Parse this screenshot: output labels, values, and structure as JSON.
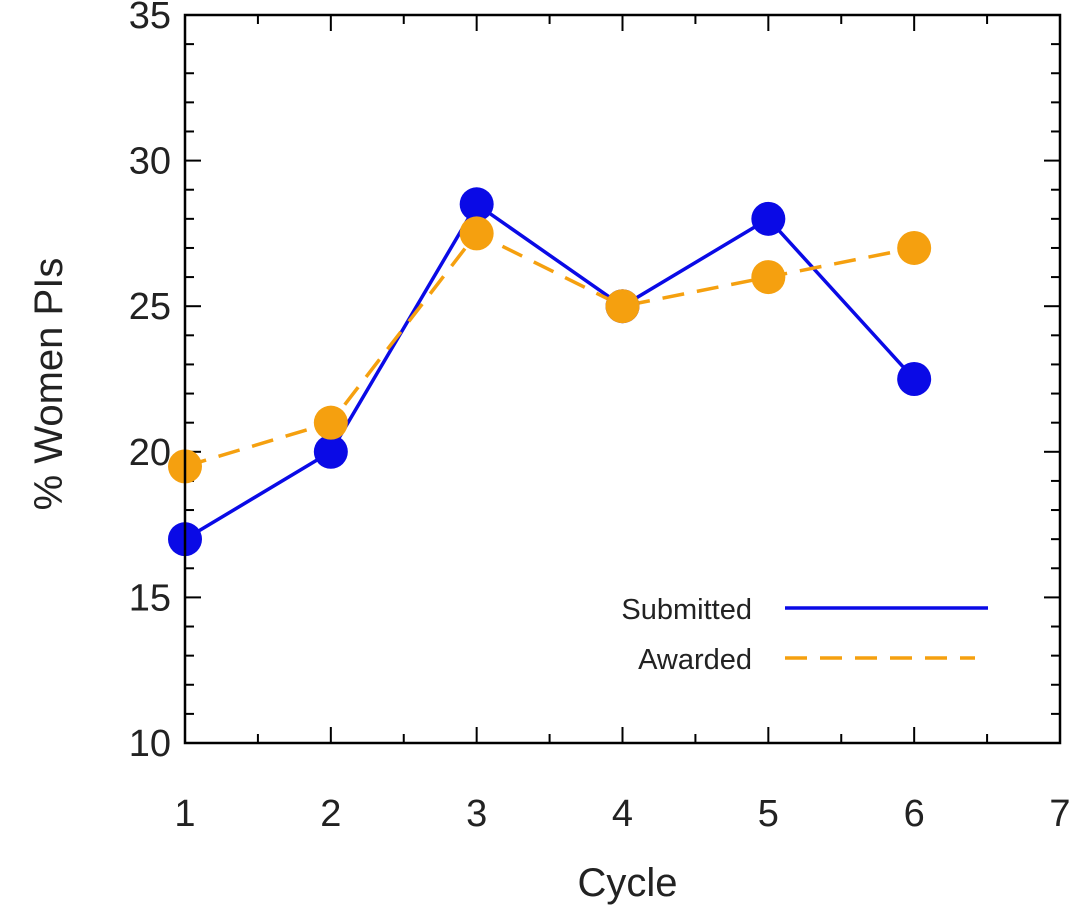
{
  "chart_data": {
    "type": "line",
    "title": "",
    "xlabel": "Cycle",
    "ylabel": "% Women PIs",
    "xlim": [
      1,
      7
    ],
    "ylim": [
      10,
      35
    ],
    "xticks": [
      1,
      2,
      3,
      4,
      5,
      6,
      7
    ],
    "yticks": [
      10,
      15,
      20,
      25,
      30,
      35
    ],
    "grid": false,
    "legend_position": "bottom-right",
    "series": [
      {
        "name": "Submitted",
        "x": [
          1,
          2,
          3,
          4,
          5,
          6
        ],
        "y": [
          17,
          20,
          28.5,
          25,
          28,
          22.5
        ],
        "color": "#0a0ae6",
        "line_style": "solid",
        "marker": "circle"
      },
      {
        "name": "Awarded",
        "x": [
          1,
          2,
          3,
          4,
          5,
          6
        ],
        "y": [
          19.5,
          21,
          27.5,
          25,
          26,
          27
        ],
        "color": "#f5a00f",
        "line_style": "dashed",
        "marker": "circle"
      }
    ]
  }
}
